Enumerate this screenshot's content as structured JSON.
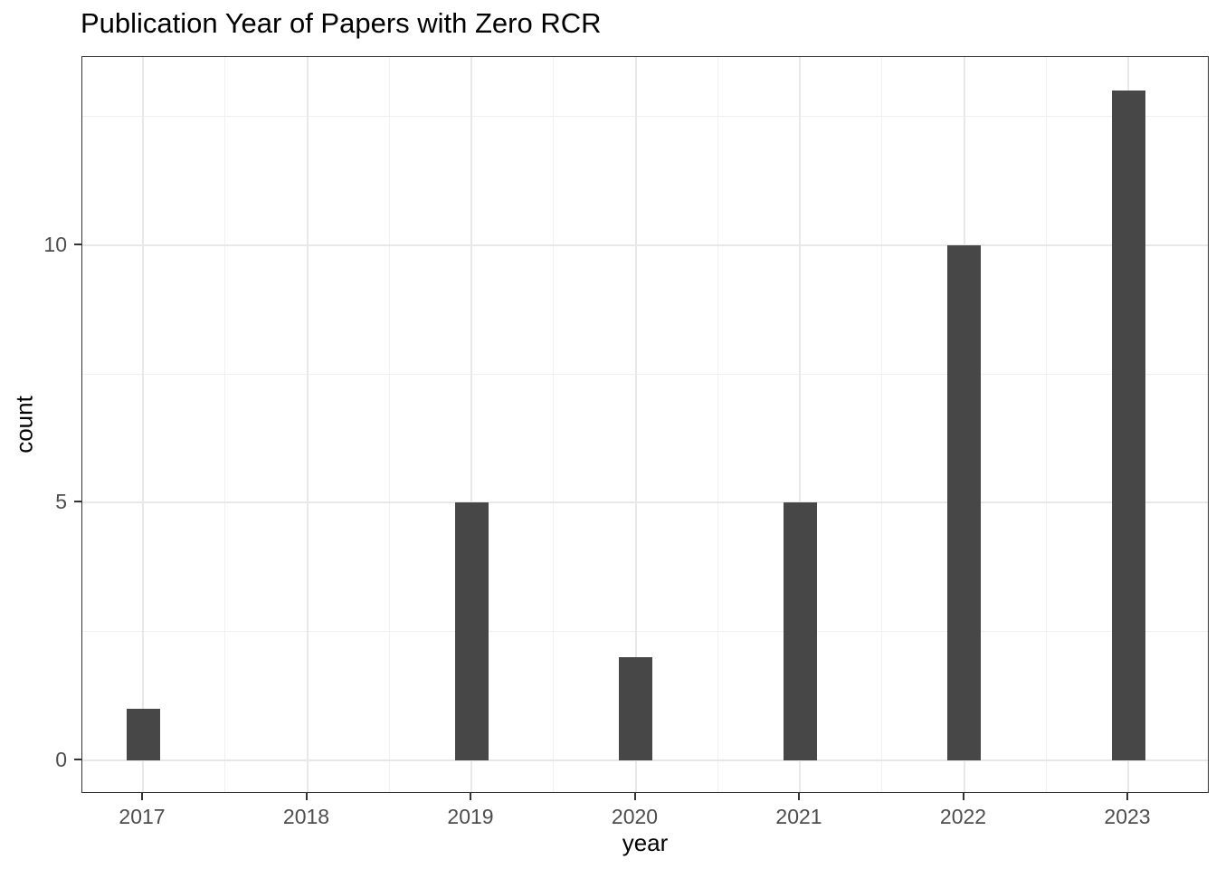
{
  "chart_data": {
    "type": "bar",
    "title": "Publication Year of Papers with Zero RCR",
    "xlabel": "year",
    "ylabel": "count",
    "categories": [
      "2017",
      "2018",
      "2019",
      "2020",
      "2021",
      "2022",
      "2023"
    ],
    "values": [
      1,
      0,
      5,
      2,
      5,
      10,
      13
    ],
    "y_tick_labels": [
      "0",
      "5",
      "10"
    ],
    "y_ticks": [
      0,
      5,
      10
    ],
    "y_minor_gridlines": [
      2.5,
      7.5,
      12.5
    ],
    "ylim": [
      -0.65,
      13.65
    ],
    "grid": true,
    "legend_position": "none",
    "colors": {
      "bar_fill": "#474747",
      "major_grid": "#E8E8E8",
      "minor_grid": "#F0F0F0",
      "panel_border": "#333333",
      "axis_tick": "#333333",
      "tick_label_text": "#4D4D4D",
      "title_text": "#000000",
      "background": "#FFFFFF"
    }
  }
}
